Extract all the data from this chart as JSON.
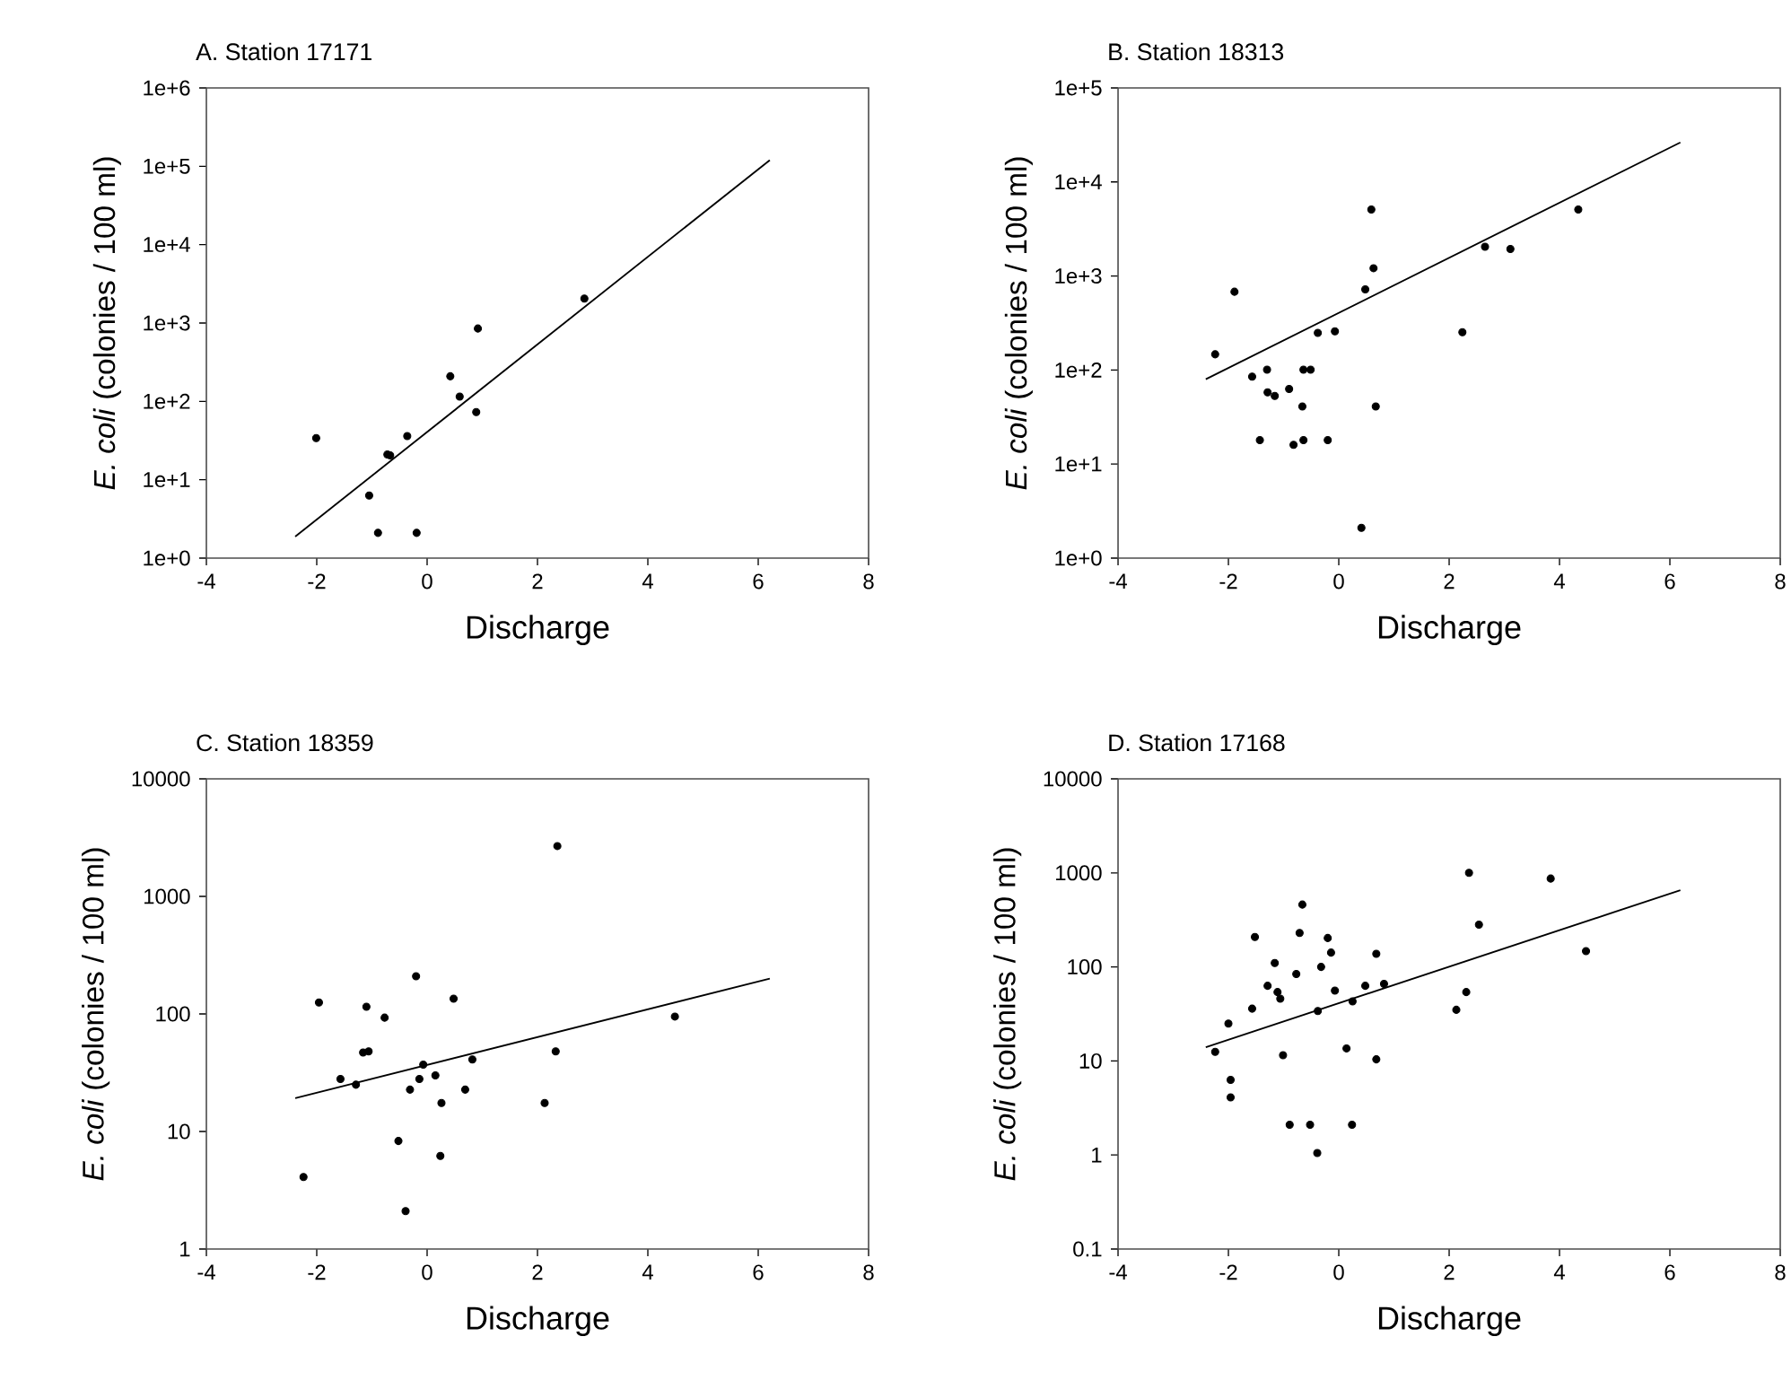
{
  "chart_data": [
    {
      "type": "scatter",
      "title": "A. Station 17171",
      "xlabel": "Discharge",
      "ylabel": "*E. coli* (colonies / 100 ml)",
      "log": "y",
      "xlim": [
        -4,
        8
      ],
      "xticks": [
        -4,
        -2,
        0,
        2,
        4,
        6,
        8
      ],
      "ylim": [
        1,
        1000000
      ],
      "yticks": [
        {
          "value": 1,
          "label": "1e+0"
        },
        {
          "value": 10,
          "label": "1e+1"
        },
        {
          "value": 100,
          "label": "1e+2"
        },
        {
          "value": 1000,
          "label": "1e+3"
        },
        {
          "value": 10000,
          "label": "1e+4"
        },
        {
          "value": 100000,
          "label": "1e+5"
        },
        {
          "value": 1000000,
          "label": "1e+6"
        }
      ],
      "grid": false,
      "series": [
        {
          "type": "scatter",
          "marker": "circle",
          "color": "#000000",
          "x": [
            -2.01,
            -1.05,
            -0.89,
            -0.19,
            -0.72,
            -0.67,
            -0.36,
            0.42,
            0.59,
            0.89,
            0.92,
            2.85
          ],
          "values": [
            34,
            6.3,
            2.1,
            2.1,
            21,
            20.5,
            36,
            209,
            115,
            73,
            850,
            2050
          ]
        },
        {
          "type": "line",
          "marker": "none",
          "line_style": "solid",
          "color": "#000000",
          "x": [
            -2.39,
            6.21
          ],
          "values": [
            1.88,
            120000
          ]
        }
      ]
    },
    {
      "type": "scatter",
      "title": "B. Station 18313",
      "xlabel": "Discharge",
      "ylabel": "*E. coli* (colonies / 100 ml)",
      "log": "y",
      "xlim": [
        -4,
        8
      ],
      "xticks": [
        -4,
        -2,
        0,
        2,
        4,
        6,
        8
      ],
      "ylim": [
        1,
        100000
      ],
      "yticks": [
        {
          "value": 1,
          "label": "1e+0"
        },
        {
          "value": 10,
          "label": "1e+1"
        },
        {
          "value": 100,
          "label": "1e+2"
        },
        {
          "value": 1000,
          "label": "1e+3"
        },
        {
          "value": 10000,
          "label": "1e+4"
        },
        {
          "value": 100000,
          "label": "1e+5"
        }
      ],
      "grid": false,
      "series": [
        {
          "type": "scatter",
          "marker": "circle",
          "color": "#000000",
          "x": [
            -2.24,
            -1.89,
            -1.57,
            -1.3,
            -1.29,
            -1.16,
            -1.43,
            -0.9,
            -0.82,
            -0.66,
            -0.64,
            -0.64,
            -0.51,
            -0.38,
            -0.2,
            -0.07,
            0.41,
            0.48,
            0.59,
            0.63,
            0.67,
            2.24,
            2.65,
            3.11,
            4.34
          ],
          "values": [
            147,
            680,
            85,
            101,
            58,
            53,
            18,
            63,
            16,
            41,
            18,
            101,
            101,
            248,
            18,
            258,
            2.1,
            722,
            5100,
            1210,
            41,
            252,
            2050,
            1940,
            5100
          ]
        },
        {
          "type": "line",
          "marker": "none",
          "line_style": "solid",
          "color": "#000000",
          "x": [
            -2.41,
            6.19
          ],
          "values": [
            80,
            26300
          ]
        }
      ]
    },
    {
      "type": "scatter",
      "title": "C. Station 18359",
      "xlabel": "Discharge",
      "ylabel": "*E. coli* (colonies / 100 ml)",
      "log": "y",
      "xlim": [
        -4,
        8
      ],
      "xticks": [
        -4,
        -2,
        0,
        2,
        4,
        6,
        8
      ],
      "ylim": [
        1,
        10000
      ],
      "yticks": [
        1,
        10,
        100,
        1000,
        10000
      ],
      "grid": false,
      "series": [
        {
          "type": "scatter",
          "marker": "circle",
          "color": "#000000",
          "x": [
            -2.24,
            -1.96,
            -1.57,
            -1.29,
            -1.16,
            -1.06,
            -1.1,
            -0.77,
            -0.52,
            -0.39,
            -0.31,
            -0.2,
            -0.14,
            -0.07,
            0.15,
            0.24,
            0.26,
            0.48,
            0.69,
            0.82,
            2.13,
            2.33,
            2.36,
            4.49
          ],
          "values": [
            4.1,
            125,
            28,
            25,
            47,
            48,
            115,
            93,
            8.3,
            2.1,
            22.7,
            209,
            28,
            37,
            30,
            6.2,
            17.5,
            135,
            22.7,
            41,
            17.5,
            48,
            2680,
            95
          ]
        },
        {
          "type": "line",
          "marker": "none",
          "line_style": "solid",
          "color": "#000000",
          "x": [
            -2.39,
            6.21
          ],
          "values": [
            19.2,
            200
          ]
        }
      ]
    },
    {
      "type": "scatter",
      "title": "D. Station 17168",
      "xlabel": "Discharge",
      "ylabel": "*E. coli* (colonies / 100 ml)",
      "log": "y",
      "xlim": [
        -4,
        8
      ],
      "xticks": [
        -4,
        -2,
        0,
        2,
        4,
        6,
        8
      ],
      "ylim": [
        0.1,
        10000
      ],
      "yticks": [
        0.1,
        1,
        10,
        100,
        1000,
        10000
      ],
      "grid": false,
      "series": [
        {
          "type": "scatter",
          "marker": "circle",
          "color": "#000000",
          "x": [
            -2.24,
            -2.0,
            -1.96,
            -1.96,
            -1.57,
            -1.52,
            -1.29,
            -1.16,
            -1.11,
            -1.06,
            -1.01,
            -0.89,
            -0.77,
            -0.71,
            -0.66,
            -0.52,
            -0.39,
            -0.38,
            -0.32,
            -0.2,
            -0.14,
            -0.07,
            0.14,
            0.24,
            0.25,
            0.48,
            0.68,
            0.68,
            0.82,
            2.13,
            2.31,
            2.36,
            2.54,
            3.84,
            4.48
          ],
          "values": [
            12.5,
            25,
            6.3,
            4.1,
            36,
            208,
            63,
            110,
            54,
            46,
            11.5,
            2.1,
            84,
            230,
            460,
            2.1,
            1.05,
            34,
            100,
            203,
            142,
            56,
            13.6,
            2.1,
            43,
            63,
            10.4,
            138,
            66,
            35,
            54,
            1000,
            282,
            870,
            147
          ]
        },
        {
          "type": "line",
          "marker": "none",
          "line_style": "solid",
          "color": "#000000",
          "x": [
            -2.41,
            6.19
          ],
          "values": [
            14,
            655
          ]
        }
      ]
    }
  ]
}
